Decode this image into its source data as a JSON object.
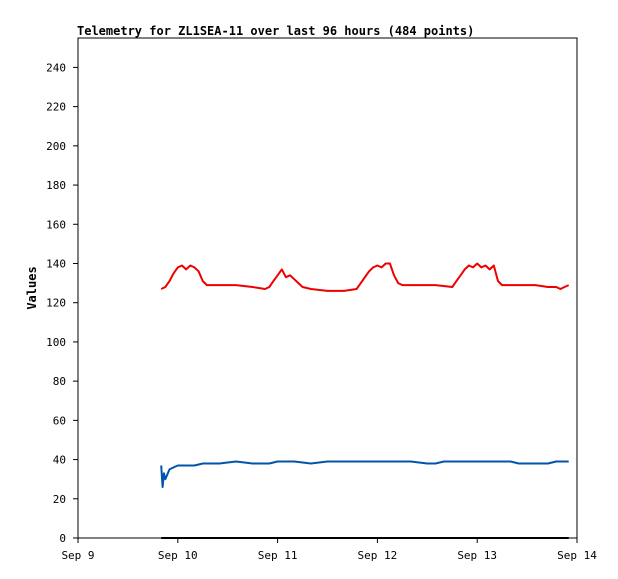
{
  "chart_data": {
    "type": "line",
    "title": "Telemetry for ZL1SEA-11 over last 96 hours (484 points)",
    "xlabel": "",
    "ylabel": "Values",
    "xlim": [
      "2023-09-09",
      "2023-09-14"
    ],
    "ylim": [
      0,
      255
    ],
    "yticks": [
      0,
      20,
      40,
      60,
      80,
      100,
      120,
      140,
      160,
      180,
      200,
      220,
      240
    ],
    "xticks": [
      {
        "date": "2023-09-09",
        "label": "Sep 9"
      },
      {
        "date": "2023-09-10",
        "label": "Sep 10"
      },
      {
        "date": "2023-09-11",
        "label": "Sep 11"
      },
      {
        "date": "2023-09-12",
        "label": "Sep 12"
      },
      {
        "date": "2023-09-13",
        "label": "Sep 13"
      },
      {
        "date": "2023-09-14",
        "label": "Sep 14"
      }
    ],
    "grid": false,
    "series": [
      {
        "color": "#ee0000",
        "points": [
          [
            "2023-09-09T20:00",
            127
          ],
          [
            "2023-09-09T21:00",
            128
          ],
          [
            "2023-09-09T22:00",
            131
          ],
          [
            "2023-09-09T23:00",
            135
          ],
          [
            "2023-09-10T00:00",
            138
          ],
          [
            "2023-09-10T01:00",
            139
          ],
          [
            "2023-09-10T02:00",
            137
          ],
          [
            "2023-09-10T03:00",
            139
          ],
          [
            "2023-09-10T04:00",
            138
          ],
          [
            "2023-09-10T05:00",
            136
          ],
          [
            "2023-09-10T06:00",
            131
          ],
          [
            "2023-09-10T07:00",
            129
          ],
          [
            "2023-09-10T10:00",
            129
          ],
          [
            "2023-09-10T14:00",
            129
          ],
          [
            "2023-09-10T18:00",
            128
          ],
          [
            "2023-09-10T21:00",
            127
          ],
          [
            "2023-09-10T22:00",
            128
          ],
          [
            "2023-09-10T23:00",
            131
          ],
          [
            "2023-09-11T00:00",
            134
          ],
          [
            "2023-09-11T01:00",
            137
          ],
          [
            "2023-09-11T02:00",
            133
          ],
          [
            "2023-09-11T03:00",
            134
          ],
          [
            "2023-09-11T04:00",
            132
          ],
          [
            "2023-09-11T05:00",
            130
          ],
          [
            "2023-09-11T06:00",
            128
          ],
          [
            "2023-09-11T08:00",
            127
          ],
          [
            "2023-09-11T12:00",
            126
          ],
          [
            "2023-09-11T16:00",
            126
          ],
          [
            "2023-09-11T19:00",
            127
          ],
          [
            "2023-09-11T20:00",
            130
          ],
          [
            "2023-09-11T21:00",
            133
          ],
          [
            "2023-09-11T22:00",
            136
          ],
          [
            "2023-09-11T23:00",
            138
          ],
          [
            "2023-09-12T00:00",
            139
          ],
          [
            "2023-09-12T01:00",
            138
          ],
          [
            "2023-09-12T02:00",
            140
          ],
          [
            "2023-09-12T03:00",
            140
          ],
          [
            "2023-09-12T04:00",
            134
          ],
          [
            "2023-09-12T05:00",
            130
          ],
          [
            "2023-09-12T06:00",
            129
          ],
          [
            "2023-09-12T09:00",
            129
          ],
          [
            "2023-09-12T14:00",
            129
          ],
          [
            "2023-09-12T18:00",
            128
          ],
          [
            "2023-09-12T19:00",
            131
          ],
          [
            "2023-09-12T20:00",
            134
          ],
          [
            "2023-09-12T21:00",
            137
          ],
          [
            "2023-09-12T22:00",
            139
          ],
          [
            "2023-09-12T23:00",
            138
          ],
          [
            "2023-09-13T00:00",
            140
          ],
          [
            "2023-09-13T01:00",
            138
          ],
          [
            "2023-09-13T02:00",
            139
          ],
          [
            "2023-09-13T03:00",
            137
          ],
          [
            "2023-09-13T04:00",
            139
          ],
          [
            "2023-09-13T05:00",
            131
          ],
          [
            "2023-09-13T06:00",
            129
          ],
          [
            "2023-09-13T10:00",
            129
          ],
          [
            "2023-09-13T14:00",
            129
          ],
          [
            "2023-09-13T17:00",
            128
          ],
          [
            "2023-09-13T19:00",
            128
          ],
          [
            "2023-09-13T20:00",
            127
          ],
          [
            "2023-09-13T21:00",
            128
          ],
          [
            "2023-09-13T22:00",
            129
          ]
        ]
      },
      {
        "color": "#0055aa",
        "points": [
          [
            "2023-09-09T20:00",
            37
          ],
          [
            "2023-09-09T20:20",
            26
          ],
          [
            "2023-09-09T20:40",
            33
          ],
          [
            "2023-09-09T21:00",
            30
          ],
          [
            "2023-09-09T22:00",
            35
          ],
          [
            "2023-09-09T23:00",
            36
          ],
          [
            "2023-09-10T00:00",
            37
          ],
          [
            "2023-09-10T02:00",
            37
          ],
          [
            "2023-09-10T04:00",
            37
          ],
          [
            "2023-09-10T06:00",
            38
          ],
          [
            "2023-09-10T10:00",
            38
          ],
          [
            "2023-09-10T14:00",
            39
          ],
          [
            "2023-09-10T18:00",
            38
          ],
          [
            "2023-09-10T22:00",
            38
          ],
          [
            "2023-09-11T00:00",
            39
          ],
          [
            "2023-09-11T04:00",
            39
          ],
          [
            "2023-09-11T08:00",
            38
          ],
          [
            "2023-09-11T12:00",
            39
          ],
          [
            "2023-09-11T16:00",
            39
          ],
          [
            "2023-09-11T20:00",
            39
          ],
          [
            "2023-09-12T00:00",
            39
          ],
          [
            "2023-09-12T04:00",
            39
          ],
          [
            "2023-09-12T08:00",
            39
          ],
          [
            "2023-09-12T12:00",
            38
          ],
          [
            "2023-09-12T14:00",
            38
          ],
          [
            "2023-09-12T16:00",
            39
          ],
          [
            "2023-09-12T20:00",
            39
          ],
          [
            "2023-09-13T00:00",
            39
          ],
          [
            "2023-09-13T04:00",
            39
          ],
          [
            "2023-09-13T08:00",
            39
          ],
          [
            "2023-09-13T10:00",
            38
          ],
          [
            "2023-09-13T14:00",
            38
          ],
          [
            "2023-09-13T17:00",
            38
          ],
          [
            "2023-09-13T19:00",
            39
          ],
          [
            "2023-09-13T22:00",
            39
          ]
        ]
      },
      {
        "color": "#000000",
        "points": [
          [
            "2023-09-09T20:00",
            0
          ],
          [
            "2023-09-13T22:00",
            0
          ]
        ]
      }
    ]
  }
}
